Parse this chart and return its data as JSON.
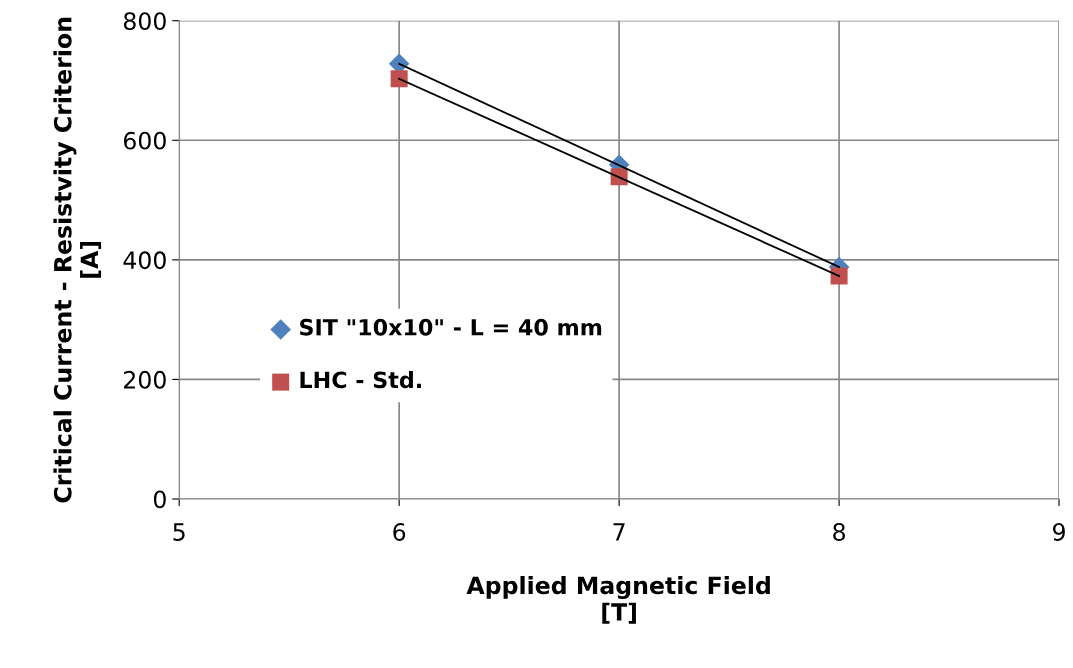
{
  "chart_data": {
    "type": "scatter",
    "xlabel": "Applied Magnetic Field\n[T]",
    "ylabel": "Critical Current - Resistvity Criterion\n[A]",
    "xlim": [
      5,
      9
    ],
    "xticks": [
      5,
      6,
      7,
      8,
      9
    ],
    "ylim": [
      0,
      800
    ],
    "yticks": [
      0,
      200,
      400,
      600,
      800
    ],
    "grid": true,
    "legend": "left",
    "series": [
      {
        "name": "SIT \"10x10\" - L = 40 mm",
        "color": "#4f81bd",
        "marker": "diamond",
        "x": [
          6,
          7,
          8
        ],
        "values": [
          728,
          559,
          388
        ]
      },
      {
        "name": "LHC - Std.",
        "color": "#c0504d",
        "marker": "square",
        "x": [
          6,
          7,
          8
        ],
        "values": [
          703,
          539,
          373
        ]
      },
      {
        "type": "line",
        "color": "#000000",
        "marker": "none",
        "x": [
          6,
          8
        ],
        "values": [
          728,
          388
        ]
      },
      {
        "type": "line",
        "color": "#000000",
        "marker": "none",
        "x": [
          6,
          8
        ],
        "values": [
          703,
          373
        ]
      }
    ]
  }
}
